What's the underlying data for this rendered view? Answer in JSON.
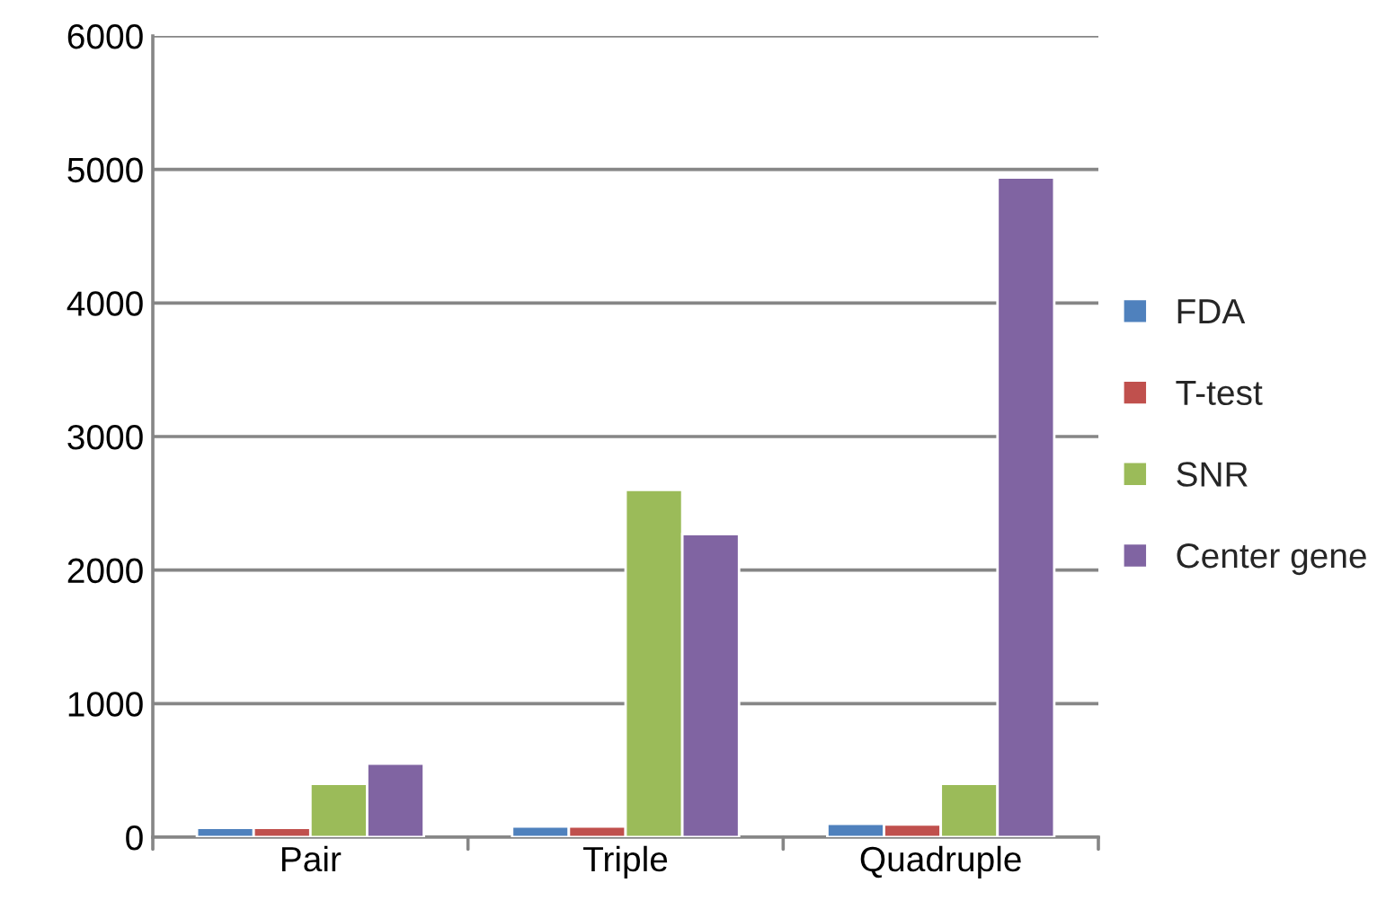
{
  "chart_data": {
    "type": "bar",
    "categories": [
      "Pair",
      "Triple",
      "Quadruple"
    ],
    "series": [
      {
        "name": "FDA",
        "color": "#4f81bd",
        "values": [
          70,
          80,
          100
        ]
      },
      {
        "name": "T-test",
        "color": "#c0504d",
        "values": [
          70,
          80,
          95
        ]
      },
      {
        "name": "SNR",
        "color": "#9bbb59",
        "values": [
          400,
          2600,
          400
        ]
      },
      {
        "name": "Center gene",
        "color": "#8064a2",
        "values": [
          550,
          2270,
          4940
        ]
      }
    ],
    "ylim": [
      0,
      6000
    ],
    "yticks": [
      0,
      1000,
      2000,
      3000,
      4000,
      5000,
      6000
    ],
    "grid": "y",
    "legend": "right"
  }
}
